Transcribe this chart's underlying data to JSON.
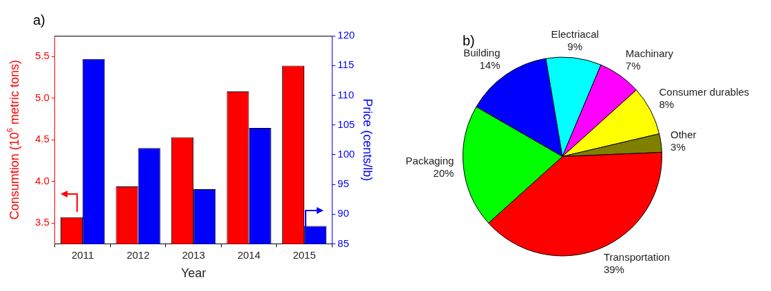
{
  "chart_data": [
    {
      "type": "bar",
      "title": "a)",
      "categories": [
        "2011",
        "2012",
        "2013",
        "2014",
        "2015"
      ],
      "xlabel": "Year",
      "ylabel": "Consumtion (10$^{6}$ metric tons)",
      "y2label": "Price (cents/lb)",
      "series": [
        {
          "color": "#ff0000",
          "values": [
            3.57,
            3.94,
            4.53,
            5.08,
            5.39
          ]
        },
        {
          "color": "#0000ff",
          "values": [
            116.1,
            101.1,
            94.2,
            104.5,
            88.0
          ],
          "axis": "y2"
        }
      ],
      "ylim": [
        3.25,
        5.75
      ],
      "yticks": [
        3.5,
        {
          "value": 4,
          "label": "4.0"
        },
        4.5,
        {
          "value": 5,
          "label": "5.0"
        },
        5.5
      ],
      "y2lim": [
        85,
        120
      ],
      "y2ticks": [
        85,
        90,
        95,
        100,
        105,
        110,
        115,
        120
      ],
      "legend": false
    },
    {
      "type": "pie",
      "title": "b)",
      "categories": [
        "Building",
        "Electriacal",
        "Machinary",
        "Consumer durables",
        "Other",
        "Transportation",
        "Packaging"
      ],
      "values": [
        14,
        9,
        7,
        8,
        3,
        39,
        20
      ],
      "colors": [
        "#0000ff",
        "#00ffff",
        "#ff00ff",
        "#ffff00",
        "#808000",
        "#ff0000",
        "#00ff00"
      ],
      "value_labels": [
        "14%",
        "9%",
        "7%",
        "8%",
        "3%",
        "39%",
        "20%"
      ],
      "legend": false
    }
  ]
}
